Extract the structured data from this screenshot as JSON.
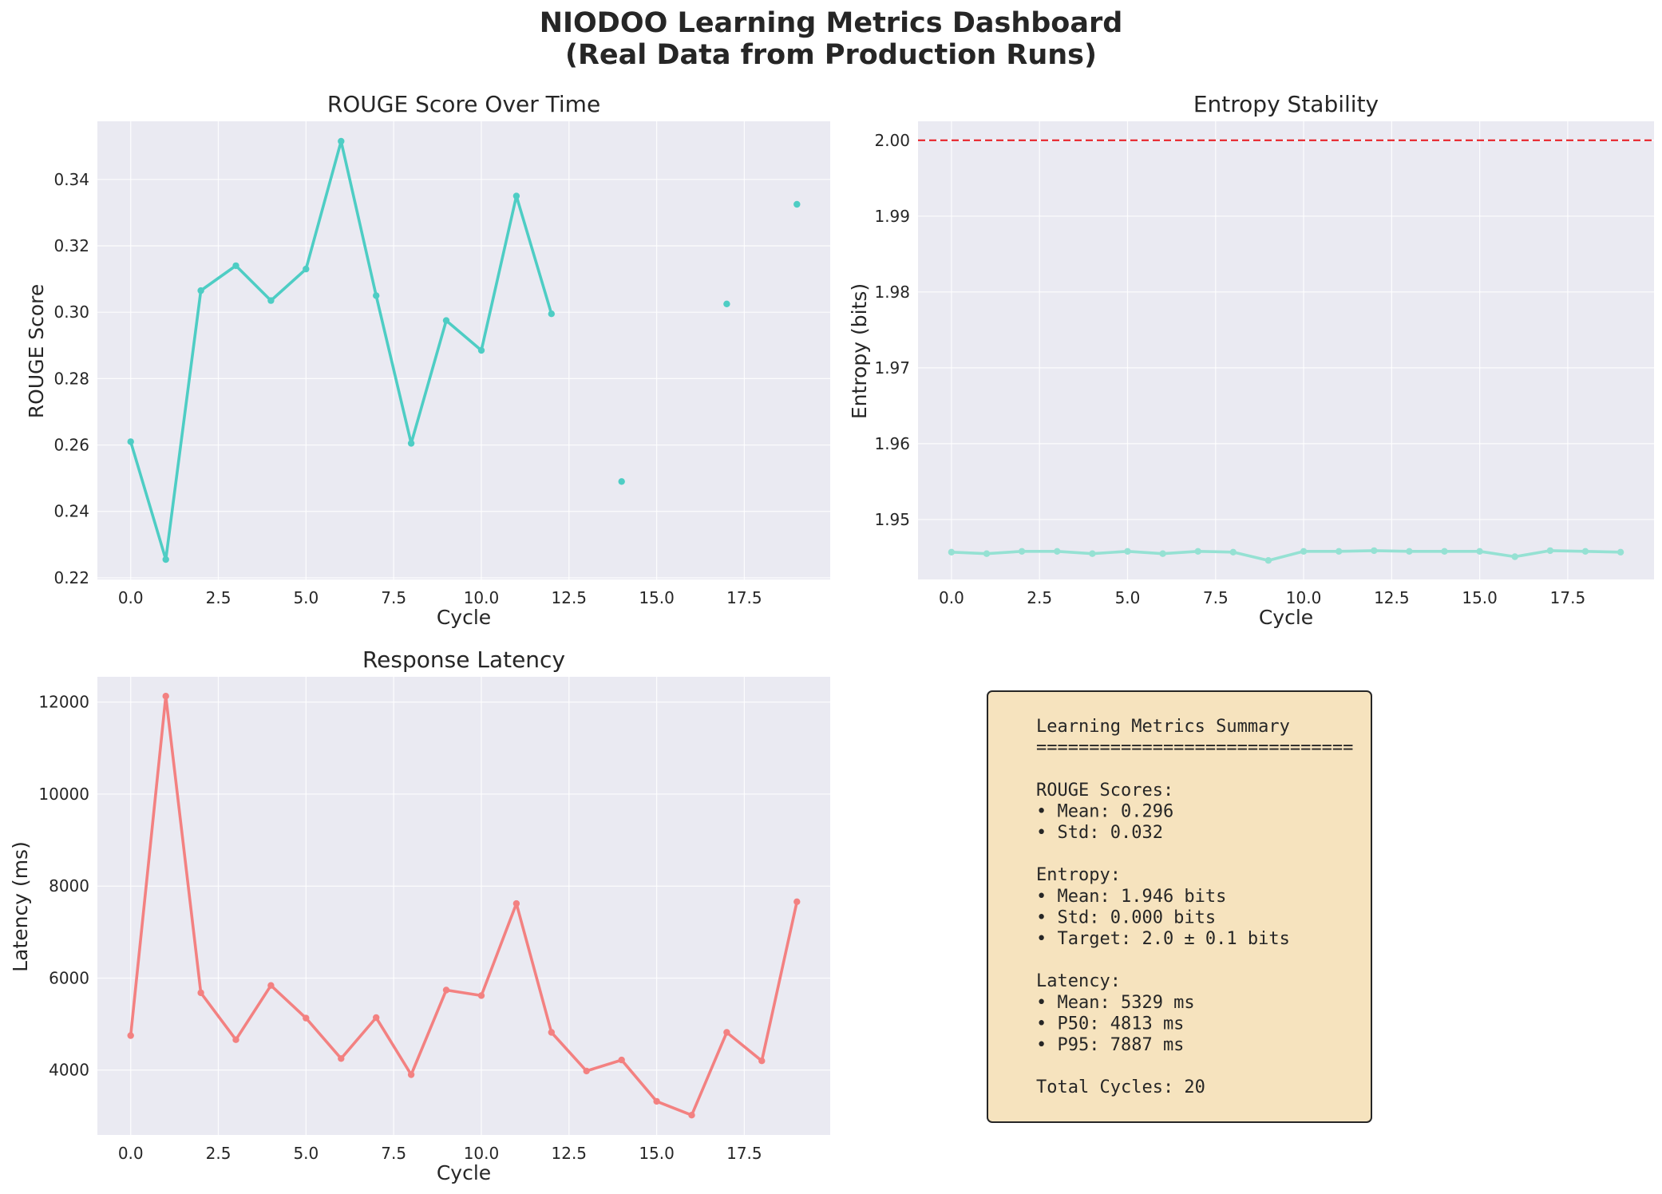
{
  "suptitle": [
    "NIODOO Learning Metrics Dashboard",
    "(Real Data from Production Runs)"
  ],
  "colors": {
    "rouge": "#4ecdc4",
    "entropy": "#95e1d3",
    "latency": "#f38181",
    "target_line": "#e8161d"
  },
  "chart_data": [
    {
      "type": "line",
      "title": "ROUGE Score Over Time",
      "xlabel": "Cycle",
      "ylabel": "ROUGE Score",
      "xlim": [
        -0.95,
        19.95
      ],
      "ylim": [
        0.2195,
        0.3575
      ],
      "xticks": [
        "0.0",
        "2.5",
        "5.0",
        "7.5",
        "10.0",
        "12.5",
        "15.0",
        "17.5"
      ],
      "yticks": [
        "0.22",
        "0.24",
        "0.26",
        "0.28",
        "0.30",
        "0.32",
        "0.34"
      ],
      "grid": true,
      "series": [
        {
          "x": [
            0,
            1,
            2,
            3,
            4,
            5,
            6,
            7,
            8,
            9,
            10,
            11,
            12,
            13,
            14,
            15,
            16,
            17,
            18,
            19
          ],
          "y": [
            0.261,
            0.2255,
            0.3065,
            0.314,
            0.3035,
            0.313,
            0.3515,
            0.305,
            0.2605,
            0.2975,
            0.2885,
            0.335,
            0.2995,
            null,
            0.249,
            null,
            null,
            0.3025,
            null,
            0.3325
          ]
        }
      ]
    },
    {
      "type": "line",
      "title": "Entropy Stability",
      "xlabel": "Cycle",
      "ylabel": "Entropy (bits)",
      "xlim": [
        -0.95,
        19.95
      ],
      "ylim": [
        1.9421,
        2.0025
      ],
      "xticks": [
        "0.0",
        "2.5",
        "5.0",
        "7.5",
        "10.0",
        "12.5",
        "15.0",
        "17.5"
      ],
      "yticks": [
        "1.95",
        "1.96",
        "1.97",
        "1.98",
        "1.99",
        "2.00"
      ],
      "grid": true,
      "reference_line": {
        "y": 2.0,
        "style": "dashed"
      },
      "series": [
        {
          "x": [
            0,
            1,
            2,
            3,
            4,
            5,
            6,
            7,
            8,
            9,
            10,
            11,
            12,
            13,
            14,
            15,
            16,
            17,
            18,
            19
          ],
          "y": [
            1.9457,
            1.9455,
            1.9458,
            1.9458,
            1.9455,
            1.9458,
            1.9455,
            1.9458,
            1.9457,
            1.9446,
            1.9458,
            1.9458,
            1.9459,
            1.9458,
            1.9458,
            1.9458,
            1.9451,
            1.9459,
            1.9458,
            1.9457
          ]
        }
      ]
    },
    {
      "type": "line",
      "title": "Response Latency",
      "xlabel": "Cycle",
      "ylabel": "Latency (ms)",
      "xlim": [
        -0.95,
        19.95
      ],
      "ylim": [
        2590,
        12550
      ],
      "xticks": [
        "0.0",
        "2.5",
        "5.0",
        "7.5",
        "10.0",
        "12.5",
        "15.0",
        "17.5"
      ],
      "yticks": [
        "4000",
        "6000",
        "8000",
        "10000",
        "12000"
      ],
      "grid": true,
      "series": [
        {
          "x": [
            0,
            1,
            2,
            3,
            4,
            5,
            6,
            7,
            8,
            9,
            10,
            11,
            12,
            13,
            14,
            15,
            16,
            17,
            18,
            19
          ],
          "y": [
            4750,
            12130,
            5680,
            4660,
            5840,
            5130,
            4250,
            5140,
            3900,
            5740,
            5620,
            7620,
            4820,
            3980,
            4220,
            3320,
            3020,
            4820,
            4200,
            7660
          ]
        }
      ]
    }
  ],
  "summary": {
    "lines": [
      "Learning Metrics Summary",
      "==============================",
      "",
      "ROUGE Scores:",
      "• Mean: 0.296",
      "• Std:  0.032",
      "",
      "Entropy:",
      "• Mean: 1.946 bits",
      "• Std:  0.000 bits",
      "• Target: 2.0 ± 0.1 bits",
      "",
      "Latency:",
      "• Mean: 5329 ms",
      "• P50:  4813 ms",
      "• P95:  7887 ms",
      "",
      "Total Cycles: 20"
    ]
  }
}
